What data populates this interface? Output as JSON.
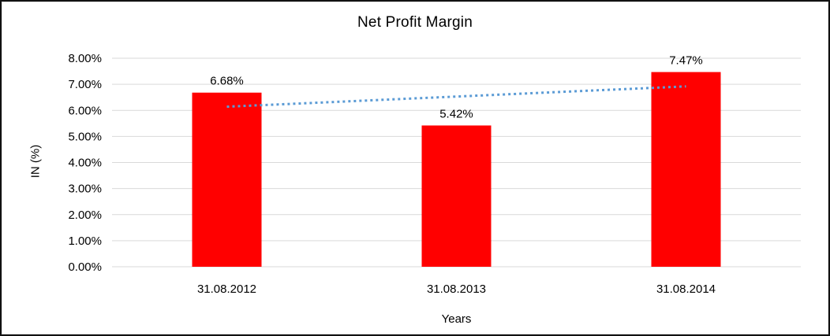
{
  "chart_data": {
    "type": "bar",
    "title": "Net Profit Margin",
    "xlabel": "Years",
    "ylabel": "IN (%)",
    "categories": [
      "31.08.2012",
      "31.08.2013",
      "31.08.2014"
    ],
    "values": [
      6.68,
      5.42,
      7.47
    ],
    "data_labels": [
      "6.68%",
      "5.42%",
      "7.47%"
    ],
    "y_ticks": [
      "8.00%",
      "7.00%",
      "6.00%",
      "5.00%",
      "4.00%",
      "3.00%",
      "2.00%",
      "1.00%",
      "0.00%"
    ],
    "ylim": [
      0,
      8
    ],
    "grid": true,
    "legend": "none",
    "bar_color": "#FF0000",
    "gridline_color": "#D9D9D9",
    "text_color": "#000000",
    "trendline": {
      "style": "dotted",
      "color": "#5B9BD5",
      "start_value_pct": 6.14,
      "end_value_pct": 6.92
    }
  }
}
